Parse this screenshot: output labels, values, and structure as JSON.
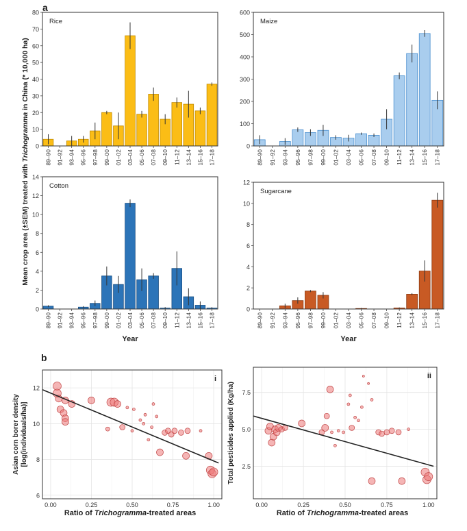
{
  "figure": {
    "panel_a_label": "a",
    "panel_b_label": "b",
    "ylabel_a_parts": [
      "Mean crop area (±SEM) treated with ",
      "Trichogramma",
      " in China (* 10,000 ha)"
    ],
    "xlabel_b_parts": [
      "Ratio of ",
      "Trichogramma",
      "-treated areas"
    ]
  },
  "chart_data": [
    {
      "id": "rice",
      "type": "bar",
      "title": "Rice",
      "xlabel": "",
      "color": "#fbbd16",
      "stroke": "#c08a00",
      "categories": [
        "89–90",
        "91–92",
        "93–94",
        "95–96",
        "97–98",
        "99–00",
        "01–02",
        "03–04",
        "05–06",
        "07–08",
        "09–10",
        "11–12",
        "13–14",
        "15–16",
        "17–18"
      ],
      "values": [
        4,
        0,
        3,
        4,
        9,
        20,
        12,
        66,
        19,
        31,
        16,
        26,
        25,
        21,
        37
      ],
      "errors": [
        3,
        0,
        3,
        2,
        5,
        1,
        8,
        8,
        2,
        4,
        3,
        3,
        8,
        2,
        1
      ],
      "ylim": [
        0,
        80
      ],
      "yticks": [
        0,
        10,
        20,
        30,
        40,
        50,
        60,
        70,
        80
      ]
    },
    {
      "id": "maize",
      "type": "bar",
      "title": "Maize",
      "xlabel": "",
      "color": "#a9cdee",
      "stroke": "#4a8fcf",
      "categories": [
        "89–90",
        "91–92",
        "93–94",
        "95–96",
        "97–98",
        "99–00",
        "01–02",
        "03–04",
        "05–06",
        "07–08",
        "09–10",
        "11–12",
        "13–14",
        "15–16",
        "17–18"
      ],
      "values": [
        28,
        0,
        20,
        73,
        60,
        70,
        38,
        35,
        55,
        48,
        120,
        315,
        415,
        505,
        205
      ],
      "errors": [
        20,
        0,
        15,
        10,
        15,
        25,
        10,
        15,
        5,
        8,
        45,
        15,
        40,
        15,
        40
      ],
      "ylim": [
        0,
        600
      ],
      "yticks": [
        0,
        100,
        200,
        300,
        400,
        500,
        600
      ]
    },
    {
      "id": "cotton",
      "type": "bar",
      "title": "Cotton",
      "xlabel": "Year",
      "color": "#2c74b8",
      "stroke": "#1a4f83",
      "categories": [
        "89–90",
        "91–92",
        "93–94",
        "95–96",
        "97–98",
        "99–00",
        "01–02",
        "03–04",
        "05–06",
        "07–08",
        "09–10",
        "11–12",
        "13–14",
        "15–16",
        "17–18"
      ],
      "values": [
        0.3,
        0,
        0,
        0.2,
        0.6,
        3.5,
        2.6,
        11.2,
        3.1,
        3.5,
        0.1,
        4.3,
        1.3,
        0.4,
        0.1
      ],
      "errors": [
        0.1,
        0,
        0,
        0.1,
        0.3,
        1.0,
        0.9,
        0.4,
        1.2,
        0.3,
        0.1,
        1.8,
        0.9,
        0.4,
        0.1
      ],
      "ylim": [
        0,
        14
      ],
      "yticks": [
        0,
        2,
        4,
        6,
        8,
        10,
        12,
        14
      ]
    },
    {
      "id": "sugarcane",
      "type": "bar",
      "title": "Sugarcane",
      "xlabel": "Year",
      "color": "#c85a24",
      "stroke": "#8c3a12",
      "categories": [
        "89–90",
        "91–92",
        "93–94",
        "95–96",
        "97–98",
        "99–00",
        "01–02",
        "03–04",
        "05–06",
        "07–08",
        "09–10",
        "11–12",
        "13–14",
        "15–16",
        "17–18"
      ],
      "values": [
        0,
        0,
        0.3,
        0.8,
        1.7,
        1.3,
        0,
        0,
        0.05,
        0,
        0,
        0.1,
        1.4,
        3.6,
        10.3
      ],
      "errors": [
        0,
        0,
        0.2,
        0.3,
        0.1,
        0.3,
        0,
        0,
        0.05,
        0,
        0,
        0.05,
        0.1,
        1.0,
        0.7
      ],
      "ylim": [
        0,
        12
      ],
      "yticks": [
        0,
        2,
        4,
        6,
        8,
        10,
        12
      ]
    },
    {
      "id": "borer",
      "type": "scatter",
      "tag": "i",
      "ylabel_lines": [
        "Asian corn borer density",
        "[log(individuals/ha)]"
      ],
      "xlim": [
        -0.05,
        1.05
      ],
      "ylim": [
        5.8,
        13
      ],
      "xticks": [
        0,
        0.25,
        0.5,
        0.75,
        1.0
      ],
      "xtick_labels": [
        "0.00",
        "0.25",
        "0.50",
        "0.75",
        "1.00"
      ],
      "yticks": [
        6,
        8,
        10,
        12
      ],
      "ytick_labels": [
        "6",
        "8",
        "10",
        "12"
      ],
      "fit": {
        "x": [
          -0.05,
          1.03
        ],
        "y": [
          11.9,
          7.8
        ]
      },
      "points": [
        {
          "x": 0.04,
          "y": 12.1,
          "r": 6
        },
        {
          "x": 0.04,
          "y": 11.7,
          "r": 6
        },
        {
          "x": 0.05,
          "y": 11.4,
          "r": 5
        },
        {
          "x": 0.06,
          "y": 10.8,
          "r": 5
        },
        {
          "x": 0.08,
          "y": 10.6,
          "r": 5
        },
        {
          "x": 0.09,
          "y": 10.3,
          "r": 5
        },
        {
          "x": 0.09,
          "y": 10.1,
          "r": 5
        },
        {
          "x": 0.09,
          "y": 11.3,
          "r": 5
        },
        {
          "x": 0.13,
          "y": 11.1,
          "r": 5
        },
        {
          "x": 0.25,
          "y": 11.3,
          "r": 5
        },
        {
          "x": 0.35,
          "y": 9.7,
          "r": 3
        },
        {
          "x": 0.37,
          "y": 11.2,
          "r": 6
        },
        {
          "x": 0.39,
          "y": 11.2,
          "r": 6
        },
        {
          "x": 0.41,
          "y": 11.1,
          "r": 5
        },
        {
          "x": 0.44,
          "y": 9.8,
          "r": 4
        },
        {
          "x": 0.47,
          "y": 10.9,
          "r": 2
        },
        {
          "x": 0.5,
          "y": 9.6,
          "r": 2
        },
        {
          "x": 0.51,
          "y": 10.8,
          "r": 2
        },
        {
          "x": 0.55,
          "y": 10.2,
          "r": 2
        },
        {
          "x": 0.57,
          "y": 10.0,
          "r": 2
        },
        {
          "x": 0.58,
          "y": 10.5,
          "r": 2
        },
        {
          "x": 0.6,
          "y": 9.1,
          "r": 2
        },
        {
          "x": 0.62,
          "y": 9.8,
          "r": 2
        },
        {
          "x": 0.63,
          "y": 11.1,
          "r": 2
        },
        {
          "x": 0.65,
          "y": 10.4,
          "r": 2
        },
        {
          "x": 0.67,
          "y": 8.4,
          "r": 5
        },
        {
          "x": 0.7,
          "y": 9.5,
          "r": 4
        },
        {
          "x": 0.72,
          "y": 9.6,
          "r": 4
        },
        {
          "x": 0.74,
          "y": 9.4,
          "r": 4
        },
        {
          "x": 0.76,
          "y": 9.6,
          "r": 4
        },
        {
          "x": 0.8,
          "y": 9.5,
          "r": 4
        },
        {
          "x": 0.83,
          "y": 8.2,
          "r": 5
        },
        {
          "x": 0.84,
          "y": 9.6,
          "r": 4
        },
        {
          "x": 0.92,
          "y": 9.6,
          "r": 2
        },
        {
          "x": 0.97,
          "y": 8.2,
          "r": 5
        },
        {
          "x": 0.98,
          "y": 7.4,
          "r": 6
        },
        {
          "x": 0.99,
          "y": 7.2,
          "r": 6
        },
        {
          "x": 1.0,
          "y": 7.3,
          "r": 6
        }
      ]
    },
    {
      "id": "pesticides",
      "type": "scatter",
      "tag": "ii",
      "ylabel_lines": [
        "Total pesticides applied (Kg/ha)"
      ],
      "xlim": [
        -0.05,
        1.05
      ],
      "ylim": [
        0.3,
        9.2
      ],
      "xticks": [
        0,
        0.25,
        0.5,
        0.75,
        1.0
      ],
      "xtick_labels": [
        "0.00",
        "0.25",
        "0.50",
        "0.75",
        "1.00"
      ],
      "yticks": [
        2.5,
        5.0,
        7.5
      ],
      "ytick_labels": [
        "2.5",
        "5.0",
        "7.5"
      ],
      "fit": {
        "x": [
          -0.05,
          1.03
        ],
        "y": [
          5.9,
          2.5
        ]
      },
      "points": [
        {
          "x": 0.04,
          "y": 4.9,
          "r": 5
        },
        {
          "x": 0.05,
          "y": 5.2,
          "r": 5
        },
        {
          "x": 0.06,
          "y": 4.1,
          "r": 5
        },
        {
          "x": 0.07,
          "y": 4.5,
          "r": 5
        },
        {
          "x": 0.08,
          "y": 5.0,
          "r": 5
        },
        {
          "x": 0.09,
          "y": 4.8,
          "r": 5
        },
        {
          "x": 0.1,
          "y": 5.1,
          "r": 5
        },
        {
          "x": 0.12,
          "y": 5.0,
          "r": 4
        },
        {
          "x": 0.14,
          "y": 5.1,
          "r": 4
        },
        {
          "x": 0.24,
          "y": 5.4,
          "r": 5
        },
        {
          "x": 0.36,
          "y": 4.8,
          "r": 4
        },
        {
          "x": 0.38,
          "y": 5.1,
          "r": 5
        },
        {
          "x": 0.39,
          "y": 5.9,
          "r": 4
        },
        {
          "x": 0.41,
          "y": 7.7,
          "r": 5
        },
        {
          "x": 0.42,
          "y": 4.8,
          "r": 2
        },
        {
          "x": 0.44,
          "y": 3.9,
          "r": 2
        },
        {
          "x": 0.46,
          "y": 4.9,
          "r": 2
        },
        {
          "x": 0.49,
          "y": 4.8,
          "r": 2
        },
        {
          "x": 0.52,
          "y": 6.7,
          "r": 2
        },
        {
          "x": 0.53,
          "y": 7.3,
          "r": 2
        },
        {
          "x": 0.54,
          "y": 5.1,
          "r": 4
        },
        {
          "x": 0.56,
          "y": 5.8,
          "r": 2
        },
        {
          "x": 0.58,
          "y": 5.6,
          "r": 2
        },
        {
          "x": 0.6,
          "y": 6.5,
          "r": 2
        },
        {
          "x": 0.61,
          "y": 8.6,
          "r": 1.5
        },
        {
          "x": 0.64,
          "y": 8.1,
          "r": 1.5
        },
        {
          "x": 0.66,
          "y": 7.0,
          "r": 2
        },
        {
          "x": 0.66,
          "y": 1.5,
          "r": 5
        },
        {
          "x": 0.7,
          "y": 4.8,
          "r": 4
        },
        {
          "x": 0.72,
          "y": 4.7,
          "r": 4
        },
        {
          "x": 0.75,
          "y": 4.8,
          "r": 4
        },
        {
          "x": 0.78,
          "y": 4.9,
          "r": 4
        },
        {
          "x": 0.82,
          "y": 4.8,
          "r": 4
        },
        {
          "x": 0.84,
          "y": 1.5,
          "r": 5
        },
        {
          "x": 0.88,
          "y": 5.0,
          "r": 2
        },
        {
          "x": 0.98,
          "y": 2.1,
          "r": 6
        },
        {
          "x": 0.99,
          "y": 1.6,
          "r": 6
        },
        {
          "x": 1.0,
          "y": 1.8,
          "r": 6
        }
      ]
    }
  ]
}
